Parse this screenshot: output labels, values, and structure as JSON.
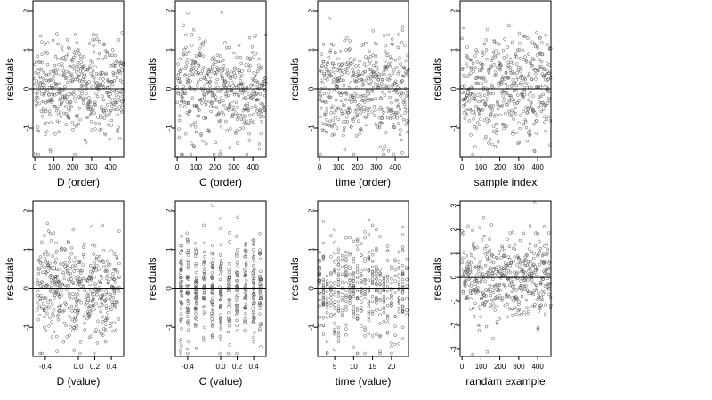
{
  "chart_data": [
    {
      "type": "scatter",
      "xlabel": "D (order)",
      "ylabel": "residuals",
      "xlim": [
        -10,
        470
      ],
      "ylim": [
        -1.75,
        2.25
      ],
      "xticks": [
        "0",
        "100",
        "200",
        "300",
        "400"
      ],
      "xtick_vals": [
        0,
        100,
        200,
        300,
        400
      ],
      "yticks": [
        "-1",
        "0",
        "1",
        "2"
      ],
      "ytick_vals": [
        -1,
        0,
        1,
        2
      ],
      "hline": 0,
      "point_count": 470,
      "series_pattern": "sequential-noise"
    },
    {
      "type": "scatter",
      "xlabel": "C (order)",
      "ylabel": "residuals",
      "xlim": [
        -10,
        470
      ],
      "ylim": [
        -1.75,
        2.25
      ],
      "xticks": [
        "0",
        "100",
        "200",
        "300",
        "400"
      ],
      "xtick_vals": [
        0,
        100,
        200,
        300,
        400
      ],
      "yticks": [
        "-1",
        "0",
        "1",
        "2"
      ],
      "ytick_vals": [
        -1,
        0,
        1,
        2
      ],
      "hline": 0,
      "point_count": 470,
      "series_pattern": "sequential-noise"
    },
    {
      "type": "scatter",
      "xlabel": "time (order)",
      "ylabel": "residuals",
      "xlim": [
        -10,
        470
      ],
      "ylim": [
        -1.75,
        2.25
      ],
      "xticks": [
        "0",
        "100",
        "200",
        "300",
        "400"
      ],
      "xtick_vals": [
        0,
        100,
        200,
        300,
        400
      ],
      "yticks": [
        "-1",
        "0",
        "1",
        "2"
      ],
      "ytick_vals": [
        -1,
        0,
        1,
        2
      ],
      "hline": 0,
      "point_count": 470,
      "series_pattern": "sequential-noise"
    },
    {
      "type": "scatter",
      "xlabel": "sample index",
      "ylabel": "residuals",
      "xlim": [
        -10,
        470
      ],
      "ylim": [
        -1.75,
        2.25
      ],
      "xticks": [
        "0",
        "100",
        "200",
        "300",
        "400"
      ],
      "xtick_vals": [
        0,
        100,
        200,
        300,
        400
      ],
      "yticks": [
        "-1",
        "0",
        "1",
        "2"
      ],
      "ytick_vals": [
        -1,
        0,
        1,
        2
      ],
      "hline": 0,
      "point_count": 470,
      "series_pattern": "sequential-noise"
    },
    {
      "type": "scatter",
      "xlabel": "D (value)",
      "ylabel": "residuals",
      "xlim": [
        -0.55,
        0.55
      ],
      "ylim": [
        -1.75,
        2.25
      ],
      "xticks": [
        "-0.4",
        "0.0",
        "0.2",
        "0.4"
      ],
      "xtick_vals": [
        -0.4,
        0,
        0.2,
        0.4
      ],
      "yticks": [
        "-1",
        "0",
        "1",
        "2"
      ],
      "ytick_vals": [
        -1,
        0,
        1,
        2
      ],
      "hline": 0,
      "point_count": 470,
      "series_pattern": "continuous-x"
    },
    {
      "type": "scatter",
      "xlabel": "C (value)",
      "ylabel": "residuals",
      "xlim": [
        -0.55,
        0.55
      ],
      "ylim": [
        -1.75,
        2.25
      ],
      "xticks": [
        "-0.4",
        "0.0",
        "0.2",
        "0.4"
      ],
      "xtick_vals": [
        -0.4,
        0,
        0.2,
        0.4
      ],
      "yticks": [
        "-1",
        "0",
        "1",
        "2"
      ],
      "ytick_vals": [
        -1,
        0,
        1,
        2
      ],
      "hline": 0,
      "point_count": 470,
      "series_pattern": "discrete-x"
    },
    {
      "type": "scatter",
      "xlabel": "time (value)",
      "ylabel": "residuals",
      "xlim": [
        0.5,
        24.5
      ],
      "ylim": [
        -1.75,
        2.25
      ],
      "xticks": [
        "5",
        "10",
        "15",
        "20"
      ],
      "xtick_vals": [
        5,
        10,
        15,
        20
      ],
      "yticks": [
        "-1",
        "0",
        "1",
        "2"
      ],
      "ytick_vals": [
        -1,
        0,
        1,
        2
      ],
      "hline": 0,
      "point_count": 470,
      "series_pattern": "discrete-x"
    },
    {
      "type": "scatter",
      "xlabel": "randam example",
      "ylabel": "residuals",
      "xlim": [
        -10,
        470
      ],
      "ylim": [
        -3.3,
        3.2
      ],
      "xticks": [
        "0",
        "100",
        "200",
        "300",
        "400"
      ],
      "xtick_vals": [
        0,
        100,
        200,
        300,
        400
      ],
      "yticks": [
        "-3",
        "-2",
        "-1",
        "0",
        "1",
        "2",
        "3"
      ],
      "ytick_vals": [
        -3,
        -2,
        -1,
        0,
        1,
        2,
        3
      ],
      "hline": 0,
      "point_count": 470,
      "series_pattern": "sequential-noise"
    }
  ]
}
